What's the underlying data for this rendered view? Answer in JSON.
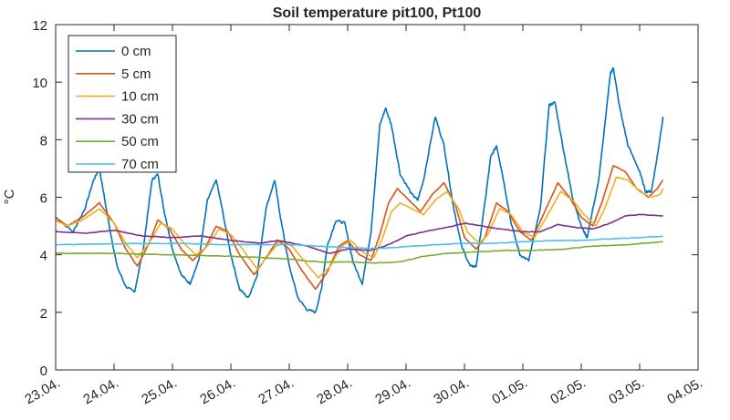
{
  "chart_data": {
    "type": "line",
    "title": "Soil temperature pit100, Pt100",
    "xlabel": "",
    "ylabel": "°C",
    "xlim": [
      0,
      11
    ],
    "ylim": [
      0,
      12
    ],
    "yticks": [
      0,
      2,
      4,
      6,
      8,
      10,
      12
    ],
    "x_tick_labels": [
      "23.04.",
      "24.04.",
      "25.04.",
      "26.04.",
      "27.04.",
      "28.04.",
      "29.04.",
      "30.04.",
      "01.05.",
      "02.05.",
      "03.05.",
      "04.05."
    ],
    "x_unit_note": "x values are days since 23.04. 00:00",
    "legend_position": "top-left",
    "grid": false,
    "series": [
      {
        "name": "0 cm",
        "color": "#0072BD",
        "points": [
          [
            0.0,
            5.3
          ],
          [
            0.3,
            4.8
          ],
          [
            0.5,
            5.6
          ],
          [
            0.65,
            6.6
          ],
          [
            0.75,
            7.0
          ],
          [
            0.9,
            5.2
          ],
          [
            1.05,
            3.6
          ],
          [
            1.2,
            2.9
          ],
          [
            1.35,
            2.7
          ],
          [
            1.5,
            4.2
          ],
          [
            1.65,
            6.6
          ],
          [
            1.75,
            6.8
          ],
          [
            1.85,
            5.6
          ],
          [
            2.0,
            4.2
          ],
          [
            2.15,
            3.3
          ],
          [
            2.3,
            3.0
          ],
          [
            2.45,
            3.8
          ],
          [
            2.6,
            5.9
          ],
          [
            2.75,
            6.6
          ],
          [
            2.85,
            5.6
          ],
          [
            3.0,
            4.0
          ],
          [
            3.15,
            2.8
          ],
          [
            3.3,
            2.5
          ],
          [
            3.45,
            3.3
          ],
          [
            3.6,
            5.6
          ],
          [
            3.75,
            6.6
          ],
          [
            3.85,
            5.3
          ],
          [
            4.0,
            3.6
          ],
          [
            4.15,
            2.5
          ],
          [
            4.3,
            2.1
          ],
          [
            4.45,
            2.0
          ],
          [
            4.55,
            2.8
          ],
          [
            4.65,
            4.3
          ],
          [
            4.8,
            5.2
          ],
          [
            4.95,
            5.1
          ],
          [
            5.1,
            3.7
          ],
          [
            5.25,
            3.0
          ],
          [
            5.4,
            4.8
          ],
          [
            5.55,
            8.5
          ],
          [
            5.65,
            9.1
          ],
          [
            5.75,
            8.5
          ],
          [
            5.9,
            6.8
          ],
          [
            6.1,
            6.1
          ],
          [
            6.2,
            5.9
          ],
          [
            6.3,
            6.6
          ],
          [
            6.5,
            8.8
          ],
          [
            6.65,
            7.8
          ],
          [
            6.8,
            5.8
          ],
          [
            6.95,
            4.3
          ],
          [
            7.1,
            3.6
          ],
          [
            7.2,
            3.6
          ],
          [
            7.35,
            5.8
          ],
          [
            7.45,
            7.4
          ],
          [
            7.55,
            7.8
          ],
          [
            7.65,
            6.8
          ],
          [
            7.8,
            5.1
          ],
          [
            7.95,
            4.0
          ],
          [
            8.1,
            3.8
          ],
          [
            8.3,
            5.6
          ],
          [
            8.45,
            9.2
          ],
          [
            8.55,
            9.3
          ],
          [
            8.7,
            7.6
          ],
          [
            8.85,
            6.0
          ],
          [
            9.0,
            5.0
          ],
          [
            9.1,
            4.6
          ],
          [
            9.3,
            6.6
          ],
          [
            9.5,
            10.3
          ],
          [
            9.55,
            10.5
          ],
          [
            9.65,
            9.2
          ],
          [
            9.8,
            7.8
          ],
          [
            10.0,
            6.9
          ],
          [
            10.1,
            6.2
          ],
          [
            10.2,
            6.2
          ],
          [
            10.3,
            7.4
          ],
          [
            10.4,
            8.8
          ]
        ]
      },
      {
        "name": "5 cm",
        "color": "#D95319",
        "points": [
          [
            0.0,
            5.3
          ],
          [
            0.2,
            5.0
          ],
          [
            0.45,
            5.3
          ],
          [
            0.75,
            5.8
          ],
          [
            1.0,
            5.1
          ],
          [
            1.2,
            4.2
          ],
          [
            1.4,
            3.6
          ],
          [
            1.6,
            4.4
          ],
          [
            1.75,
            5.2
          ],
          [
            1.95,
            4.9
          ],
          [
            2.15,
            4.2
          ],
          [
            2.35,
            3.8
          ],
          [
            2.55,
            4.2
          ],
          [
            2.75,
            5.0
          ],
          [
            2.95,
            4.8
          ],
          [
            3.15,
            4.0
          ],
          [
            3.4,
            3.3
          ],
          [
            3.6,
            3.9
          ],
          [
            3.8,
            4.5
          ],
          [
            4.0,
            4.2
          ],
          [
            4.2,
            3.5
          ],
          [
            4.45,
            2.8
          ],
          [
            4.65,
            3.4
          ],
          [
            4.85,
            4.3
          ],
          [
            5.0,
            4.5
          ],
          [
            5.2,
            4.0
          ],
          [
            5.4,
            3.8
          ],
          [
            5.55,
            4.7
          ],
          [
            5.7,
            5.8
          ],
          [
            5.85,
            6.3
          ],
          [
            6.05,
            5.9
          ],
          [
            6.25,
            5.5
          ],
          [
            6.45,
            6.1
          ],
          [
            6.65,
            6.5
          ],
          [
            6.85,
            5.7
          ],
          [
            7.0,
            4.6
          ],
          [
            7.2,
            4.2
          ],
          [
            7.35,
            4.6
          ],
          [
            7.55,
            5.8
          ],
          [
            7.75,
            5.5
          ],
          [
            7.95,
            4.8
          ],
          [
            8.15,
            4.5
          ],
          [
            8.35,
            5.4
          ],
          [
            8.6,
            6.5
          ],
          [
            8.8,
            6.0
          ],
          [
            9.0,
            5.3
          ],
          [
            9.2,
            5.0
          ],
          [
            9.35,
            5.8
          ],
          [
            9.55,
            7.1
          ],
          [
            9.75,
            6.9
          ],
          [
            9.95,
            6.3
          ],
          [
            10.15,
            6.0
          ],
          [
            10.3,
            6.3
          ],
          [
            10.4,
            6.6
          ]
        ]
      },
      {
        "name": "10 cm",
        "color": "#EDB120",
        "points": [
          [
            0.0,
            5.2
          ],
          [
            0.2,
            5.0
          ],
          [
            0.45,
            5.2
          ],
          [
            0.75,
            5.6
          ],
          [
            1.0,
            5.1
          ],
          [
            1.2,
            4.4
          ],
          [
            1.4,
            3.9
          ],
          [
            1.6,
            4.4
          ],
          [
            1.8,
            5.1
          ],
          [
            2.0,
            4.9
          ],
          [
            2.2,
            4.4
          ],
          [
            2.4,
            4.0
          ],
          [
            2.6,
            4.3
          ],
          [
            2.8,
            4.9
          ],
          [
            3.0,
            4.7
          ],
          [
            3.2,
            4.2
          ],
          [
            3.45,
            3.5
          ],
          [
            3.65,
            4.0
          ],
          [
            3.85,
            4.5
          ],
          [
            4.05,
            4.3
          ],
          [
            4.25,
            3.8
          ],
          [
            4.5,
            3.2
          ],
          [
            4.7,
            3.6
          ],
          [
            4.9,
            4.3
          ],
          [
            5.05,
            4.5
          ],
          [
            5.25,
            4.1
          ],
          [
            5.45,
            3.9
          ],
          [
            5.6,
            4.6
          ],
          [
            5.75,
            5.5
          ],
          [
            5.9,
            5.8
          ],
          [
            6.1,
            5.6
          ],
          [
            6.3,
            5.4
          ],
          [
            6.5,
            5.9
          ],
          [
            6.7,
            6.2
          ],
          [
            6.9,
            5.6
          ],
          [
            7.05,
            4.8
          ],
          [
            7.25,
            4.4
          ],
          [
            7.4,
            4.7
          ],
          [
            7.6,
            5.6
          ],
          [
            7.8,
            5.4
          ],
          [
            8.0,
            4.8
          ],
          [
            8.2,
            4.6
          ],
          [
            8.4,
            5.3
          ],
          [
            8.65,
            6.2
          ],
          [
            8.85,
            5.9
          ],
          [
            9.05,
            5.4
          ],
          [
            9.25,
            5.0
          ],
          [
            9.4,
            5.6
          ],
          [
            9.6,
            6.7
          ],
          [
            9.8,
            6.6
          ],
          [
            10.0,
            6.2
          ],
          [
            10.2,
            6.0
          ],
          [
            10.35,
            6.1
          ],
          [
            10.4,
            6.3
          ]
        ]
      },
      {
        "name": "30 cm",
        "color": "#7E2F8E",
        "points": [
          [
            0.0,
            4.8
          ],
          [
            0.5,
            4.75
          ],
          [
            1.0,
            4.85
          ],
          [
            1.5,
            4.65
          ],
          [
            2.0,
            4.6
          ],
          [
            2.5,
            4.65
          ],
          [
            3.0,
            4.5
          ],
          [
            3.5,
            4.4
          ],
          [
            3.8,
            4.5
          ],
          [
            4.3,
            4.3
          ],
          [
            4.7,
            4.05
          ],
          [
            5.0,
            4.2
          ],
          [
            5.4,
            4.15
          ],
          [
            5.7,
            4.35
          ],
          [
            6.0,
            4.65
          ],
          [
            6.3,
            4.8
          ],
          [
            6.7,
            4.95
          ],
          [
            7.0,
            5.1
          ],
          [
            7.3,
            5.0
          ],
          [
            7.6,
            4.9
          ],
          [
            8.0,
            4.8
          ],
          [
            8.3,
            4.8
          ],
          [
            8.6,
            5.05
          ],
          [
            8.9,
            4.95
          ],
          [
            9.2,
            4.9
          ],
          [
            9.5,
            5.1
          ],
          [
            9.75,
            5.35
          ],
          [
            10.0,
            5.4
          ],
          [
            10.4,
            5.35
          ]
        ]
      },
      {
        "name": "50 cm",
        "color": "#77AC30",
        "points": [
          [
            0.0,
            4.05
          ],
          [
            1.0,
            4.05
          ],
          [
            2.0,
            4.0
          ],
          [
            3.0,
            3.95
          ],
          [
            4.0,
            3.85
          ],
          [
            4.5,
            3.75
          ],
          [
            5.0,
            3.75
          ],
          [
            5.5,
            3.72
          ],
          [
            5.9,
            3.75
          ],
          [
            6.3,
            3.95
          ],
          [
            6.7,
            4.05
          ],
          [
            7.2,
            4.1
          ],
          [
            7.7,
            4.15
          ],
          [
            8.2,
            4.15
          ],
          [
            8.7,
            4.2
          ],
          [
            9.2,
            4.3
          ],
          [
            9.8,
            4.35
          ],
          [
            10.4,
            4.45
          ]
        ]
      },
      {
        "name": "70 cm",
        "color": "#4DBEEE",
        "points": [
          [
            0.0,
            4.35
          ],
          [
            1.0,
            4.38
          ],
          [
            2.0,
            4.4
          ],
          [
            3.0,
            4.35
          ],
          [
            4.0,
            4.35
          ],
          [
            4.5,
            4.3
          ],
          [
            5.0,
            4.25
          ],
          [
            5.5,
            4.22
          ],
          [
            6.0,
            4.28
          ],
          [
            6.5,
            4.35
          ],
          [
            7.0,
            4.4
          ],
          [
            7.5,
            4.4
          ],
          [
            8.0,
            4.45
          ],
          [
            8.5,
            4.5
          ],
          [
            9.0,
            4.5
          ],
          [
            9.5,
            4.55
          ],
          [
            10.0,
            4.6
          ],
          [
            10.4,
            4.65
          ]
        ]
      }
    ]
  }
}
